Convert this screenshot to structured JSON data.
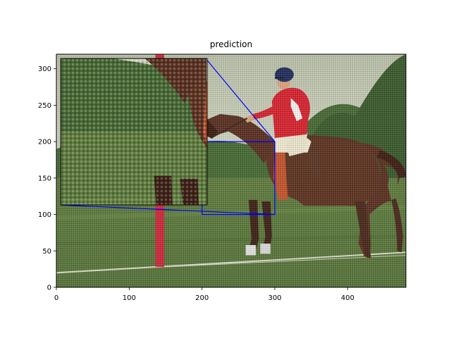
{
  "chart_data": {
    "type": "image",
    "title": "prediction",
    "xlabel": "",
    "ylabel": "",
    "xlim": [
      0,
      480
    ],
    "ylim": [
      0,
      320
    ],
    "x_ticks": [
      0,
      100,
      200,
      300,
      400
    ],
    "y_ticks": [
      0,
      50,
      100,
      150,
      200,
      250,
      300
    ],
    "grid": false,
    "image_description": "Photo of a polo player in a red shirt, white pants and navy helmet riding a brown horse on a green field, with a red-and-white pole on the left, trees and pale sky in the background; the image shows a fine checkerboard reconstruction artifact.",
    "zoom": {
      "source_region": {
        "x": [
          200,
          300
        ],
        "y": [
          100,
          200
        ]
      },
      "inset_x_span": [
        6,
        206
      ],
      "inset_y_span": [
        113,
        313
      ],
      "box_color": "#0000ff"
    },
    "colors": {
      "sky": "#c9cdb9",
      "grass": "#5f7c3e",
      "trees": "#3f5f33",
      "horse": "#5a3222",
      "shirt": "#d42530",
      "pants": "#ece6cf",
      "helmet": "#22305c",
      "pole": "#cc2a3c"
    }
  }
}
